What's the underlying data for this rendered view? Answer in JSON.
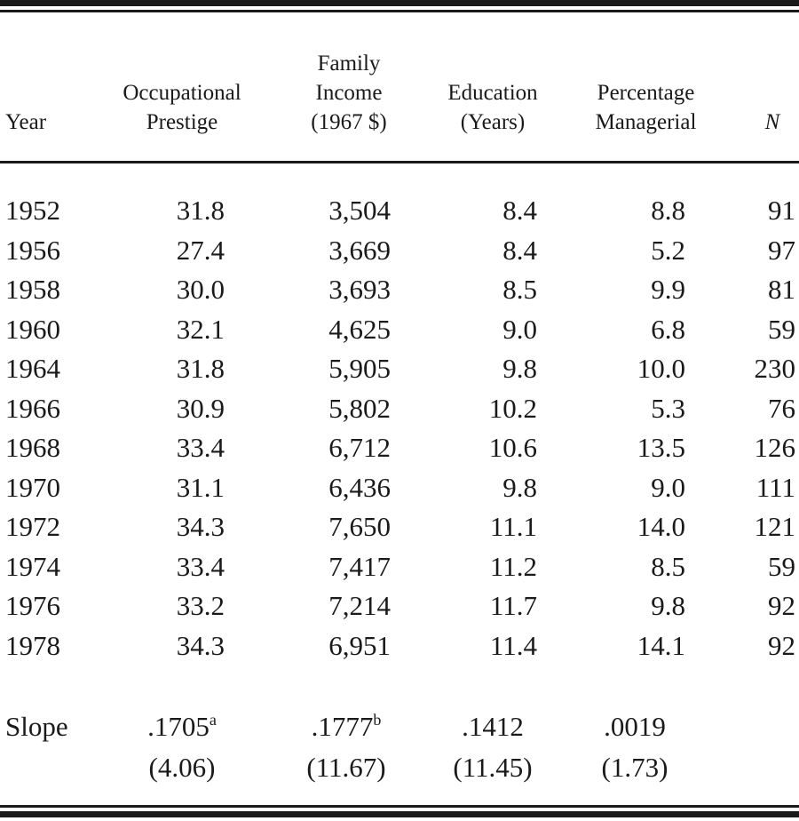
{
  "table": {
    "headers": {
      "year": [
        "Year"
      ],
      "prestige": [
        "Occupational",
        "Prestige"
      ],
      "income": [
        "Family",
        "Income",
        "(1967 $)"
      ],
      "education": [
        "Education",
        "(Years)"
      ],
      "managerial": [
        "Percentage",
        "Managerial"
      ],
      "n": [
        "N"
      ]
    },
    "rows": [
      [
        "1952",
        "31.8",
        "3,504",
        "8.4",
        "8.8",
        "91"
      ],
      [
        "1956",
        "27.4",
        "3,669",
        "8.4",
        "5.2",
        "97"
      ],
      [
        "1958",
        "30.0",
        "3,693",
        "8.5",
        "9.9",
        "81"
      ],
      [
        "1960",
        "32.1",
        "4,625",
        "9.0",
        "6.8",
        "59"
      ],
      [
        "1964",
        "31.8",
        "5,905",
        "9.8",
        "10.0",
        "230"
      ],
      [
        "1966",
        "30.9",
        "5,802",
        "10.2",
        "5.3",
        "76"
      ],
      [
        "1968",
        "33.4",
        "6,712",
        "10.6",
        "13.5",
        "126"
      ],
      [
        "1970",
        "31.1",
        "6,436",
        "9.8",
        "9.0",
        "111"
      ],
      [
        "1972",
        "34.3",
        "7,650",
        "11.1",
        "14.0",
        "121"
      ],
      [
        "1974",
        "33.4",
        "7,417",
        "11.2",
        "8.5",
        "59"
      ],
      [
        "1976",
        "33.2",
        "7,214",
        "11.7",
        "9.8",
        "92"
      ],
      [
        "1978",
        "34.3",
        "6,951",
        "11.4",
        "14.1",
        "92"
      ]
    ],
    "slope": {
      "label": "Slope",
      "prestige": {
        "value": ".1705",
        "mark": "a",
        "t": "(4.06)"
      },
      "income": {
        "value": ".1777",
        "mark": "b",
        "t": "(11.67)"
      },
      "education": {
        "value": ".1412",
        "mark": "",
        "t": "(11.45)"
      },
      "managerial": {
        "value": ".0019",
        "mark": "",
        "t": "(1.73)"
      }
    }
  },
  "colors": {
    "ink": "#1a1a1a",
    "paper": "#ffffff"
  }
}
